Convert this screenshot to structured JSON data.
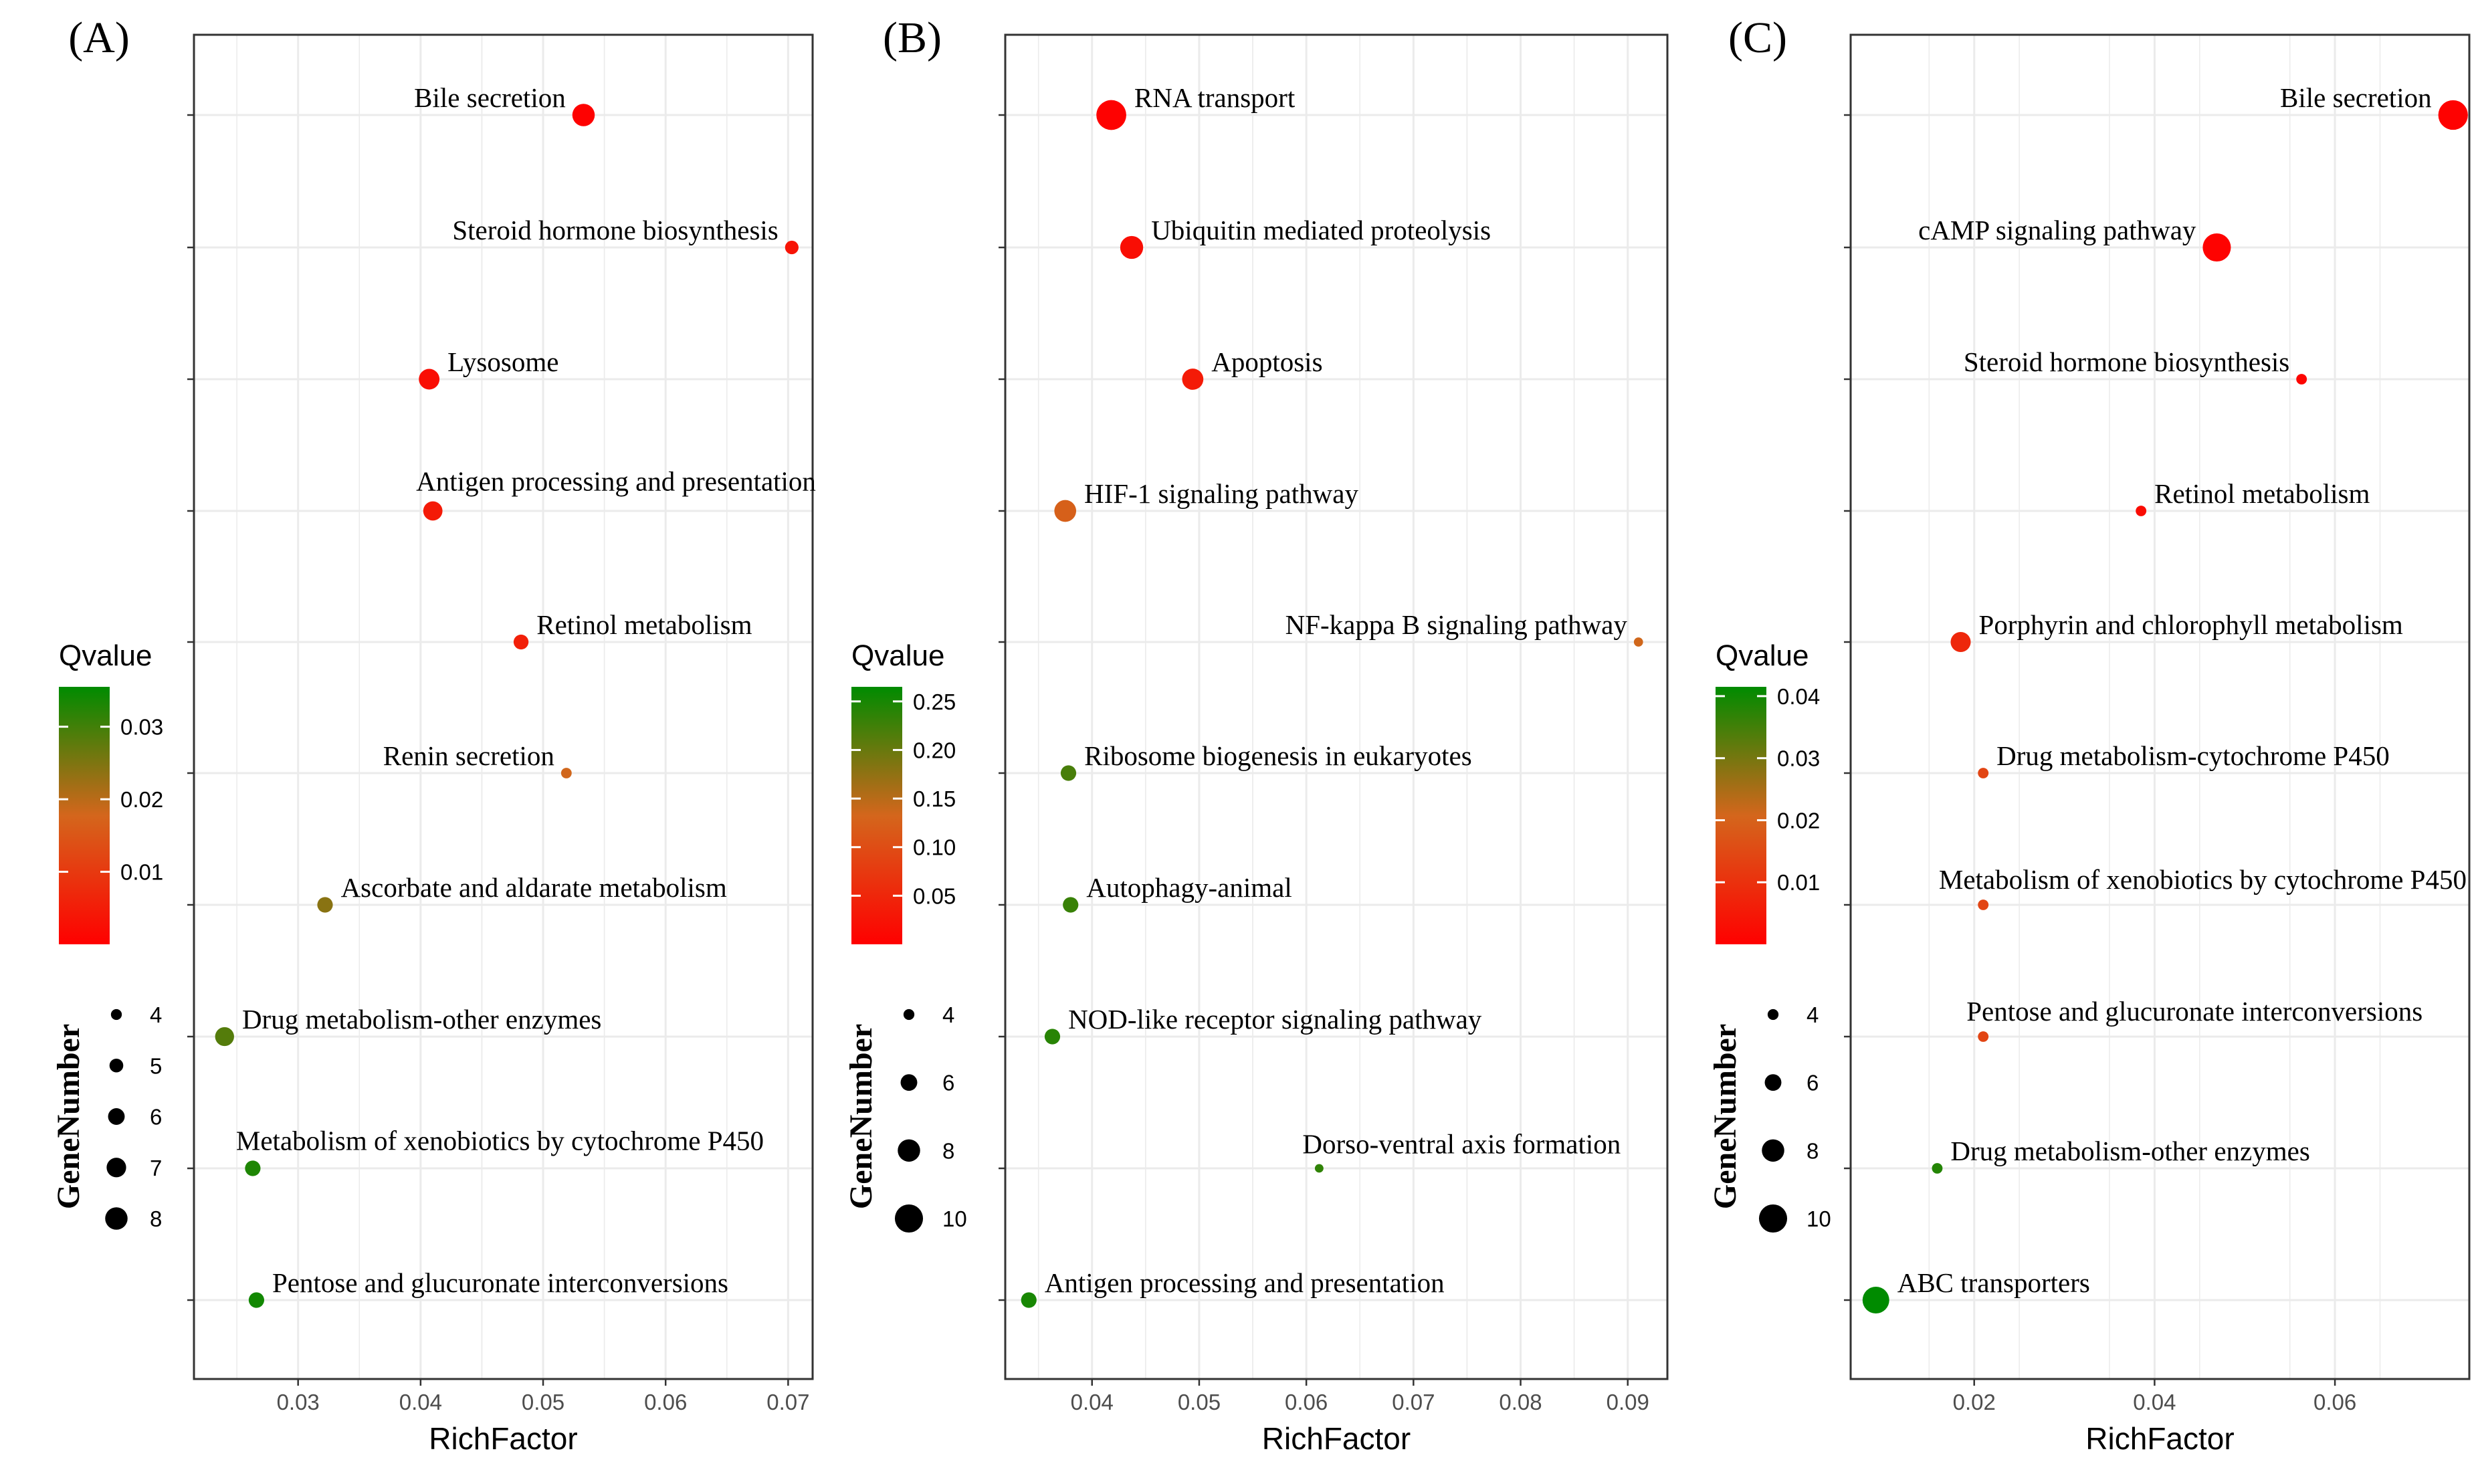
{
  "chart_data": [
    {
      "type": "scatter",
      "panel_label": "(A)",
      "xlabel": "RichFactor",
      "xlim": [
        0.0215,
        0.072
      ],
      "xticks": [
        0.03,
        0.04,
        0.05,
        0.06,
        0.07
      ],
      "xtick_labels": [
        "0.03",
        "0.04",
        "0.05",
        "0.06",
        "0.07"
      ],
      "points": [
        {
          "term": "Bile secretion",
          "x": 0.0533,
          "q": 0.0004,
          "genes": 8,
          "label_side": "left"
        },
        {
          "term": "Steroid hormone biosynthesis",
          "x": 0.0703,
          "q": 0.0035,
          "genes": 4.9,
          "label_side": "left"
        },
        {
          "term": "Lysosome",
          "x": 0.0407,
          "q": 0.0025,
          "genes": 7.4,
          "label_side": "right"
        },
        {
          "term": "Antigen processing and presentation",
          "x": 0.041,
          "q": 0.0045,
          "genes": 6.9,
          "label_side": "above"
        },
        {
          "term": "Retinol metabolism",
          "x": 0.0482,
          "q": 0.0055,
          "genes": 5.4,
          "label_side": "right"
        },
        {
          "term": "Renin secretion",
          "x": 0.0519,
          "q": 0.018,
          "genes": 3.9,
          "label_side": "left"
        },
        {
          "term": "Ascorbate and aldarate metabolism",
          "x": 0.0322,
          "q": 0.024,
          "genes": 5.6,
          "label_side": "right"
        },
        {
          "term": "Drug metabolism-other enzymes",
          "x": 0.024,
          "q": 0.0285,
          "genes": 6.8,
          "label_side": "right"
        },
        {
          "term": "Metabolism of xenobiotics by cytochrome P450",
          "x": 0.0263,
          "q": 0.033,
          "genes": 5.6,
          "label_side": "above"
        },
        {
          "term": "Pentose and glucuronate interconversions",
          "x": 0.0266,
          "q": 0.034,
          "genes": 5.6,
          "label_side": "right"
        }
      ],
      "color_legend": {
        "title": "Qvalue",
        "min": 0.0,
        "max": 0.0355,
        "ticks": [
          0.01,
          0.02,
          0.03
        ],
        "tick_labels": [
          "0.01",
          "0.02",
          "0.03"
        ]
      },
      "size_legend": {
        "title": "GeneNumber",
        "min": 4,
        "max": 8,
        "values": [
          4,
          5,
          6,
          7,
          8
        ],
        "labels": [
          "4",
          "5",
          "6",
          "7",
          "8"
        ]
      }
    },
    {
      "type": "scatter",
      "panel_label": "(B)",
      "xlabel": "RichFactor",
      "xlim": [
        0.0319,
        0.0937
      ],
      "xticks": [
        0.04,
        0.05,
        0.06,
        0.07,
        0.08,
        0.09
      ],
      "xtick_labels": [
        "0.04",
        "0.05",
        "0.06",
        "0.07",
        "0.08",
        "0.09"
      ],
      "points": [
        {
          "term": "RNA transport",
          "x": 0.0418,
          "q": 0.003,
          "genes": 10.6,
          "label_side": "right"
        },
        {
          "term": "Ubiquitin mediated proteolysis",
          "x": 0.0437,
          "q": 0.018,
          "genes": 8.2,
          "label_side": "right"
        },
        {
          "term": "Apoptosis",
          "x": 0.0494,
          "q": 0.035,
          "genes": 7.6,
          "label_side": "right"
        },
        {
          "term": "HIF-1 signaling pathway",
          "x": 0.0375,
          "q": 0.125,
          "genes": 7.8,
          "label_side": "right"
        },
        {
          "term": "NF-kappa B signaling pathway",
          "x": 0.091,
          "q": 0.135,
          "genes": 3.4,
          "label_side": "left"
        },
        {
          "term": "Ribosome biogenesis in eukaryotes",
          "x": 0.0378,
          "q": 0.22,
          "genes": 5.6,
          "label_side": "right"
        },
        {
          "term": "Autophagy-animal",
          "x": 0.038,
          "q": 0.23,
          "genes": 5.6,
          "label_side": "right"
        },
        {
          "term": "NOD-like receptor signaling pathway",
          "x": 0.0363,
          "q": 0.24,
          "genes": 5.6,
          "label_side": "right"
        },
        {
          "term": "Dorso-ventral axis formation",
          "x": 0.0612,
          "q": 0.235,
          "genes": 3.2,
          "label_side": "above"
        },
        {
          "term": "Antigen processing and presentation",
          "x": 0.0341,
          "q": 0.25,
          "genes": 5.6,
          "label_side": "right"
        }
      ],
      "color_legend": {
        "title": "Qvalue",
        "min": 0.0,
        "max": 0.265,
        "ticks": [
          0.05,
          0.1,
          0.15,
          0.2,
          0.25
        ],
        "tick_labels": [
          "0.05",
          "0.10",
          "0.15",
          "0.20",
          "0.25"
        ]
      },
      "size_legend": {
        "title": "GeneNumber",
        "min": 4,
        "max": 10,
        "values": [
          4,
          6,
          8,
          10
        ],
        "labels": [
          "4",
          "6",
          "8",
          "10"
        ]
      }
    },
    {
      "type": "scatter",
      "panel_label": "(C)",
      "xlabel": "RichFactor",
      "xlim": [
        0.0063,
        0.0749
      ],
      "xticks": [
        0.02,
        0.04,
        0.06
      ],
      "xtick_labels": [
        "0.02",
        "0.04",
        "0.06"
      ],
      "points": [
        {
          "term": "Bile secretion",
          "x": 0.0731,
          "q": 0.0004,
          "genes": 10.5,
          "label_side": "left"
        },
        {
          "term": "cAMP signaling pathway",
          "x": 0.0469,
          "q": 0.0006,
          "genes": 10.0,
          "label_side": "left"
        },
        {
          "term": "Steroid hormone biosynthesis",
          "x": 0.0563,
          "q": 0.001,
          "genes": 3.9,
          "label_side": "left"
        },
        {
          "term": "Retinol metabolism",
          "x": 0.0385,
          "q": 0.0025,
          "genes": 3.9,
          "label_side": "right"
        },
        {
          "term": "Porphyrin and chlorophyll metabolism",
          "x": 0.0185,
          "q": 0.008,
          "genes": 7.2,
          "label_side": "right"
        },
        {
          "term": "Drug metabolism-cytochrome P450",
          "x": 0.021,
          "q": 0.014,
          "genes": 3.9,
          "label_side": "right"
        },
        {
          "term": "Metabolism of xenobiotics by cytochrome P450",
          "x": 0.021,
          "q": 0.014,
          "genes": 3.9,
          "label_side": "above"
        },
        {
          "term": "Pentose and glucuronate interconversions",
          "x": 0.021,
          "q": 0.014,
          "genes": 3.9,
          "label_side": "above"
        },
        {
          "term": "Drug metabolism-other enzymes",
          "x": 0.0159,
          "q": 0.038,
          "genes": 3.9,
          "label_side": "right"
        },
        {
          "term": "ABC transporters",
          "x": 0.0091,
          "q": 0.043,
          "genes": 9.5,
          "label_side": "right"
        }
      ],
      "color_legend": {
        "title": "Qvalue",
        "min": 0.0,
        "max": 0.0415,
        "ticks": [
          0.01,
          0.02,
          0.03,
          0.04
        ],
        "tick_labels": [
          "0.01",
          "0.02",
          "0.03",
          "0.04"
        ]
      },
      "size_legend": {
        "title": "GeneNumber",
        "min": 4,
        "max": 10,
        "values": [
          4,
          6,
          8,
          10
        ],
        "labels": [
          "4",
          "6",
          "8",
          "10"
        ]
      }
    }
  ],
  "colors": {
    "low_q": "#FF0000",
    "mid_q": "#D4661C",
    "high_q": "#008B00",
    "grid": "#EBEBEB",
    "frame": "#333333",
    "text": "#000000",
    "tick_text": "#4D4D4D"
  }
}
